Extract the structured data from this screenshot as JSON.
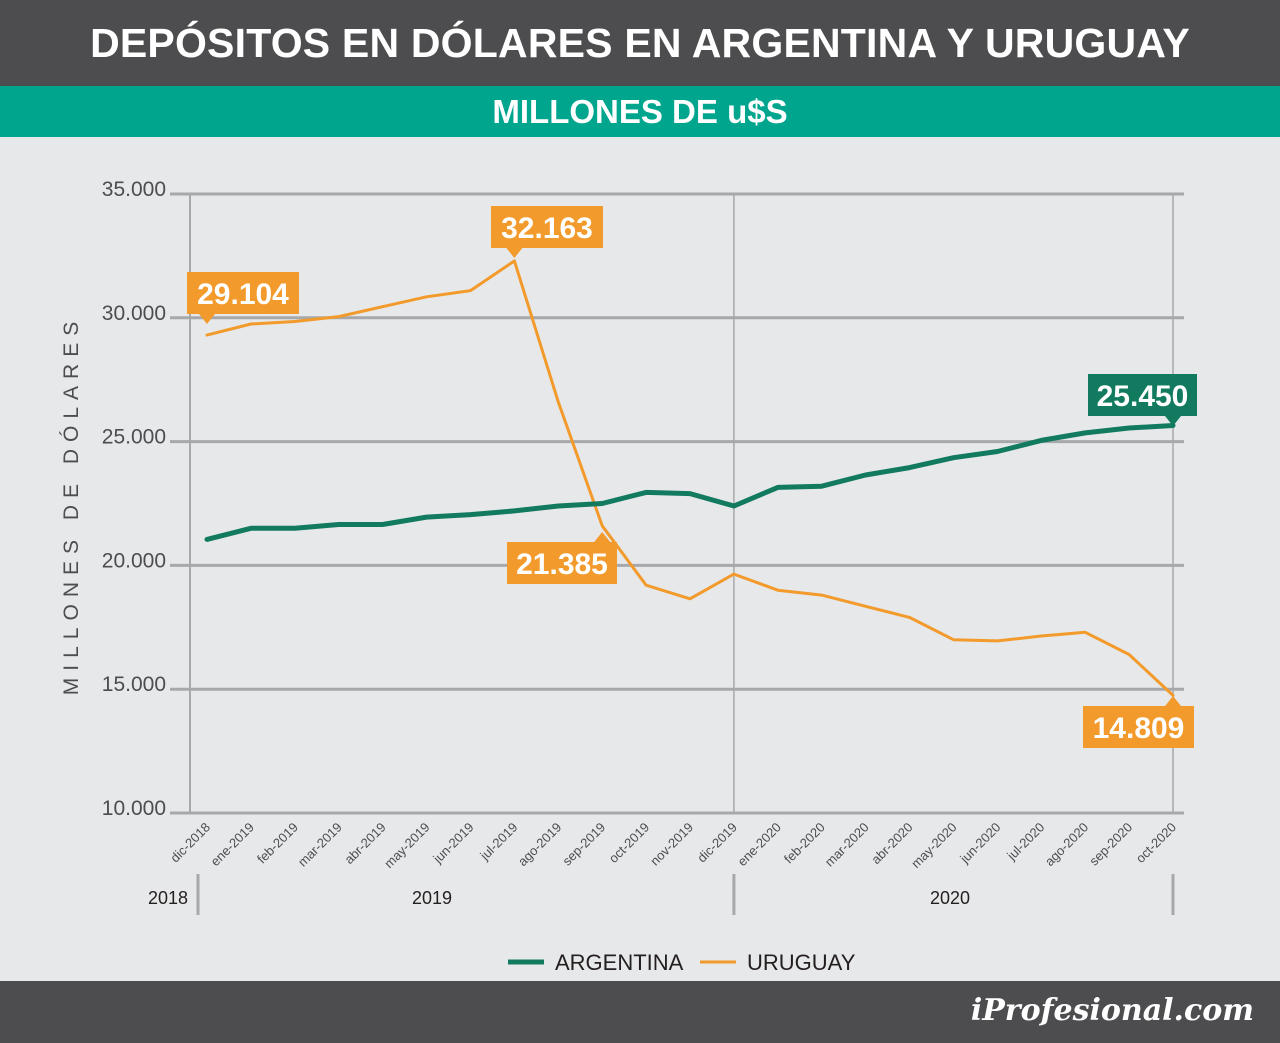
{
  "title": "DEPÓSITOS EN DÓLARES EN ARGENTINA Y URUGUAY",
  "subtitle": "MILLONES DE u$S",
  "brand": "iProfesional.com",
  "colors": {
    "argentina": "#117a5f",
    "uruguay": "#f39a2c",
    "grid": "#a6a8ab",
    "axis_text": "#4d4d4f"
  },
  "chart_data": {
    "type": "line",
    "ylabel": "MILLONES DE DÓLARES",
    "xlabel": "",
    "ylim": [
      10000,
      35000
    ],
    "yticks": [
      "10.000",
      "15.000",
      "20.000",
      "25.000",
      "30.000",
      "35.000"
    ],
    "grid": true,
    "legend": "bottom",
    "categories": [
      "dic-2018",
      "ene-2019",
      "feb-2019",
      "mar-2019",
      "abr-2019",
      "may-2019",
      "jun-2019",
      "jul-2019",
      "ago-2019",
      "sep-2019",
      "oct-2019",
      "nov-2019",
      "dic-2019",
      "ene-2020",
      "feb-2020",
      "mar-2020",
      "abr-2020",
      "may-2020",
      "jun-2020",
      "jul-2020",
      "ago-2020",
      "sep-2020",
      "oct-2020"
    ],
    "year_groups": [
      {
        "label": "2018",
        "from": 0,
        "to": 0
      },
      {
        "label": "2019",
        "from": 1,
        "to": 12
      },
      {
        "label": "2020",
        "from": 13,
        "to": 22
      }
    ],
    "series": [
      {
        "name": "ARGENTINA",
        "color": "#117a5f",
        "values": [
          21050,
          21500,
          21500,
          21650,
          21650,
          21950,
          22050,
          22200,
          22400,
          22500,
          22950,
          22900,
          22400,
          23150,
          23200,
          23650,
          23950,
          24350,
          24600,
          25050,
          25350,
          25550,
          25650
        ]
      },
      {
        "name": "URUGUAY",
        "color": "#f39a2c",
        "values": [
          29300,
          29750,
          29850,
          30050,
          30450,
          30850,
          31100,
          32300,
          26600,
          21600,
          19200,
          18650,
          19650,
          19000,
          18800,
          18350,
          17900,
          17000,
          16950,
          17150,
          17300,
          16400,
          14750
        ]
      }
    ],
    "annotations": [
      {
        "label": "29.104",
        "series": "URUGUAY",
        "index": 0,
        "position": "above"
      },
      {
        "label": "32.163",
        "series": "URUGUAY",
        "index": 7,
        "position": "above"
      },
      {
        "label": "21.385",
        "series": "URUGUAY",
        "index": 9,
        "position": "below"
      },
      {
        "label": "25.450",
        "series": "ARGENTINA",
        "index": 22,
        "position": "above"
      },
      {
        "label": "14.809",
        "series": "URUGUAY",
        "index": 22,
        "position": "below"
      }
    ]
  }
}
